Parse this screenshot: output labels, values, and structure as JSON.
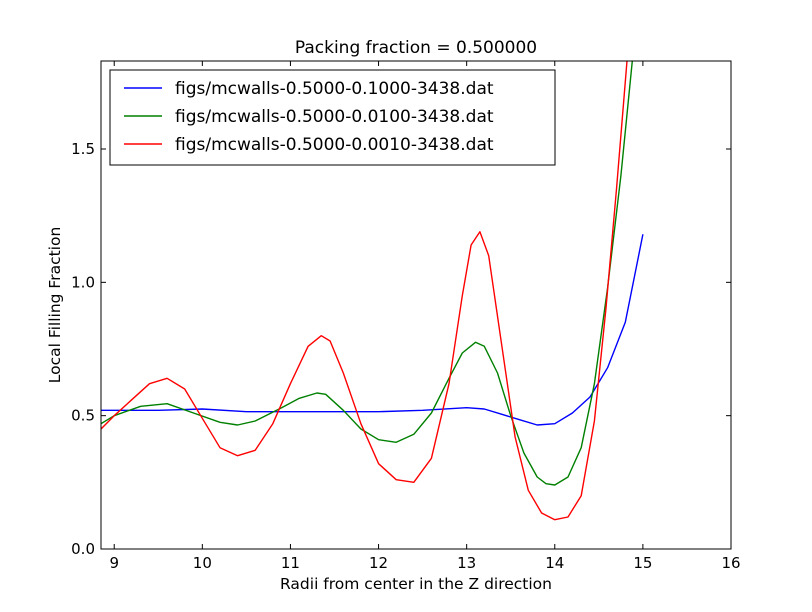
{
  "chart_data": {
    "type": "line",
    "title": "Packing fraction = 0.500000",
    "xlabel": "Radii from center in the Z direction",
    "ylabel": "Local Filling Fraction",
    "xlim": [
      8.85,
      16
    ],
    "ylim": [
      0.0,
      1.83
    ],
    "xticks": [
      "9",
      "10",
      "11",
      "12",
      "13",
      "14",
      "15",
      "16"
    ],
    "xtick_values": [
      9,
      10,
      11,
      12,
      13,
      14,
      15,
      16
    ],
    "yticks": [
      "0.0",
      "0.5",
      "1.0",
      "1.5"
    ],
    "ytick_values": [
      0.0,
      0.5,
      1.0,
      1.5
    ],
    "grid": false,
    "legend_position": "top-left",
    "series": [
      {
        "name": "figs/mcwalls-0.5000-0.1000-3438.dat",
        "color": "#0000ff",
        "x": [
          8.85,
          9.0,
          9.5,
          10.0,
          10.5,
          11.0,
          11.5,
          12.0,
          12.5,
          13.0,
          13.2,
          13.4,
          13.6,
          13.8,
          14.0,
          14.2,
          14.4,
          14.6,
          14.8,
          15.0
        ],
        "y": [
          0.52,
          0.52,
          0.52,
          0.525,
          0.515,
          0.515,
          0.515,
          0.515,
          0.52,
          0.53,
          0.525,
          0.505,
          0.485,
          0.465,
          0.47,
          0.51,
          0.57,
          0.68,
          0.85,
          1.18
        ]
      },
      {
        "name": "figs/mcwalls-0.5000-0.0100-3438.dat",
        "color": "#008000",
        "x": [
          8.85,
          9.0,
          9.3,
          9.6,
          9.9,
          10.2,
          10.4,
          10.6,
          10.9,
          11.1,
          11.3,
          11.4,
          11.6,
          11.8,
          12.0,
          12.2,
          12.4,
          12.6,
          12.8,
          12.95,
          13.1,
          13.2,
          13.35,
          13.5,
          13.65,
          13.8,
          13.9,
          14.0,
          14.15,
          14.3,
          14.45,
          14.6,
          14.75,
          14.88,
          14.95
        ],
        "y": [
          0.47,
          0.5,
          0.535,
          0.545,
          0.51,
          0.475,
          0.465,
          0.48,
          0.53,
          0.565,
          0.585,
          0.58,
          0.52,
          0.45,
          0.41,
          0.4,
          0.43,
          0.51,
          0.64,
          0.735,
          0.775,
          0.76,
          0.66,
          0.5,
          0.36,
          0.27,
          0.245,
          0.24,
          0.27,
          0.38,
          0.62,
          0.98,
          1.4,
          1.83,
          2.05
        ]
      },
      {
        "name": "figs/mcwalls-0.5000-0.0010-3438.dat",
        "color": "#ff0000",
        "x": [
          8.85,
          9.0,
          9.2,
          9.4,
          9.6,
          9.8,
          10.0,
          10.2,
          10.4,
          10.6,
          10.8,
          11.0,
          11.2,
          11.35,
          11.45,
          11.6,
          11.8,
          12.0,
          12.2,
          12.4,
          12.6,
          12.8,
          12.95,
          13.05,
          13.15,
          13.25,
          13.4,
          13.55,
          13.7,
          13.85,
          14.0,
          14.15,
          14.3,
          14.45,
          14.58,
          14.7,
          14.82,
          14.9
        ],
        "y": [
          0.45,
          0.5,
          0.56,
          0.62,
          0.64,
          0.6,
          0.49,
          0.38,
          0.35,
          0.37,
          0.47,
          0.62,
          0.76,
          0.8,
          0.78,
          0.66,
          0.47,
          0.32,
          0.26,
          0.25,
          0.34,
          0.62,
          0.95,
          1.14,
          1.19,
          1.1,
          0.76,
          0.42,
          0.22,
          0.135,
          0.11,
          0.12,
          0.2,
          0.48,
          0.9,
          1.35,
          1.83,
          2.05
        ]
      }
    ]
  }
}
